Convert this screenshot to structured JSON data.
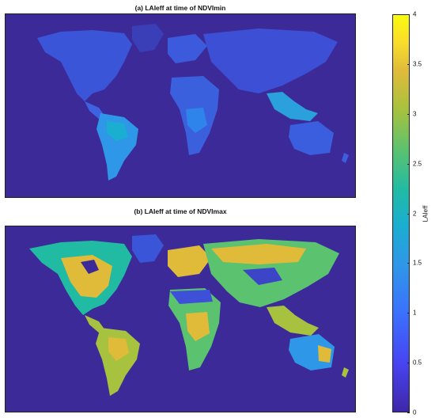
{
  "panels": [
    {
      "title": "(a) LAIeff at time of NDVImin",
      "state": "min"
    },
    {
      "title": "(b) LAIeff at time of NDVImax",
      "state": "max"
    }
  ],
  "colorbar": {
    "label": "LAIeff",
    "ticks": [
      "4",
      "3.5",
      "3",
      "2.5",
      "2",
      "1.5",
      "1",
      "0.5",
      "0"
    ],
    "range": [
      0,
      4
    ],
    "colormap": "parula",
    "colors": [
      "#3e26a8",
      "#4743f0",
      "#3b71fe",
      "#2f97e8",
      "#1aaed1",
      "#21bba4",
      "#5bc26f",
      "#a6c23e",
      "#e0bb3a",
      "#fadc2c",
      "#f9fb0e"
    ]
  },
  "ocean_color": "#3c2a98"
}
